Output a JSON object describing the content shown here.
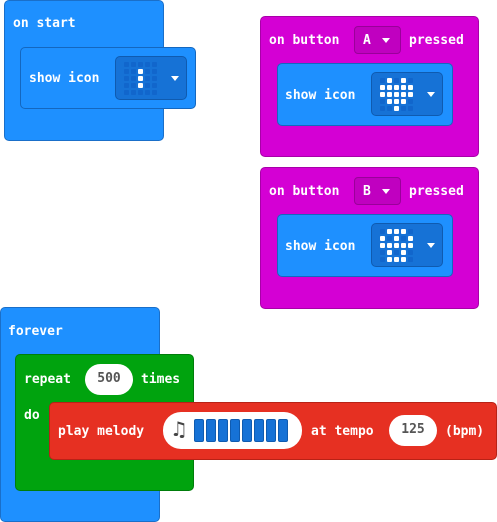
{
  "on_start": {
    "label": "on start",
    "show_icon_label": "show icon",
    "icon_leds": "0000000100001000010000000"
  },
  "button_a": {
    "label_on": "on button",
    "button": "A",
    "label_pressed": "pressed",
    "show_icon_label": "show icon",
    "icon_leds": "0101011111111110111000100"
  },
  "button_b": {
    "label_on": "on button",
    "button": "B",
    "label_pressed": "pressed",
    "show_icon_label": "show icon",
    "icon_leds": "0111010101111110101001110"
  },
  "forever": {
    "label": "forever",
    "repeat_label": "repeat",
    "repeat_count": "500",
    "times_label": "times",
    "do_label": "do",
    "play_melody_label": "play melody",
    "melody_cells": 8,
    "at_tempo_label": "at tempo",
    "tempo": "125",
    "bpm_label": "(bpm)"
  },
  "colors": {
    "basic": "#1e90ff",
    "input": "#d400d4",
    "loops": "#00a30e",
    "music": "#e63022",
    "led_on": "#ffffff",
    "led_off": "#1166cc"
  }
}
